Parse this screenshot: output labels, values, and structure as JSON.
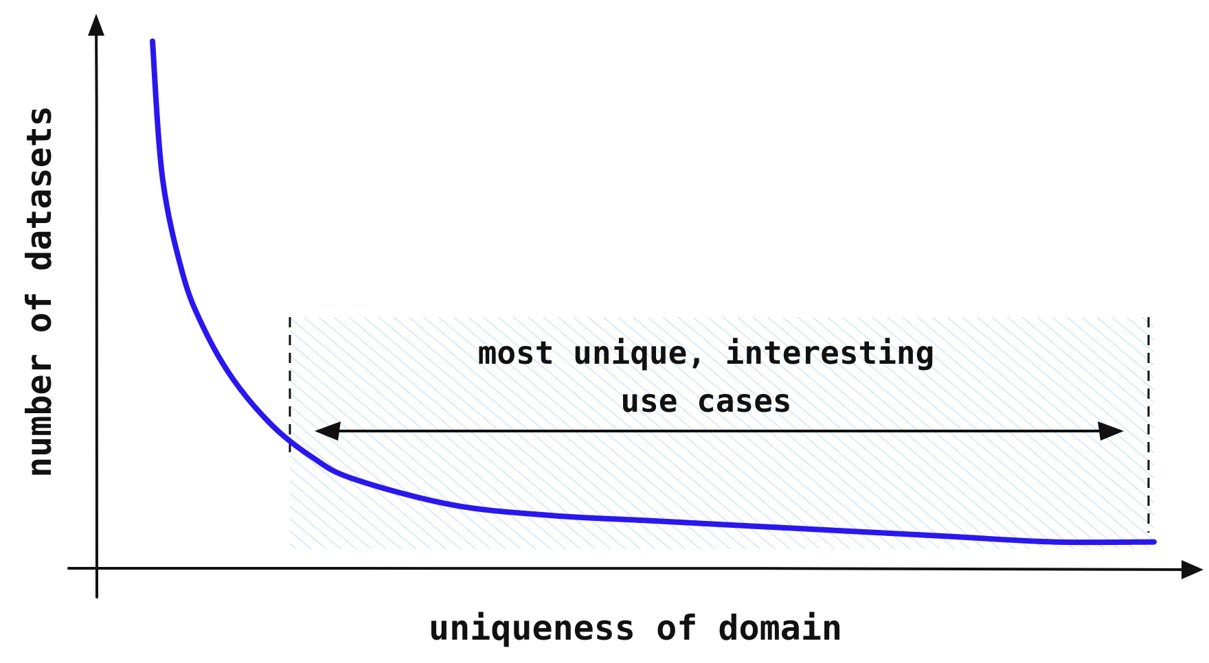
{
  "diagram": {
    "x_axis_label": "uniqueness of domain",
    "y_axis_label": "number of datasets",
    "annotation_lines": [
      "most unique, interesting",
      "use cases"
    ]
  },
  "colors": {
    "curve": "#2a17ee",
    "axis": "#111111",
    "hatch": "#a9cdf0",
    "arrow": "#111111"
  },
  "chart_data": {
    "type": "line",
    "series": [
      {
        "x": [
          0.0,
          0.01,
          0.03,
          0.05,
          0.08,
          0.12,
          0.16,
          0.2,
          0.3,
          0.4,
          0.5,
          0.6,
          0.7,
          0.8,
          0.9,
          1.0
        ],
        "y": [
          1.0,
          0.74,
          0.56,
          0.46,
          0.36,
          0.27,
          0.21,
          0.17,
          0.12,
          0.1,
          0.09,
          0.08,
          0.07,
          0.06,
          0.05,
          0.05
        ]
      }
    ],
    "highlight_range": [
      0.14,
      1.0
    ]
  }
}
